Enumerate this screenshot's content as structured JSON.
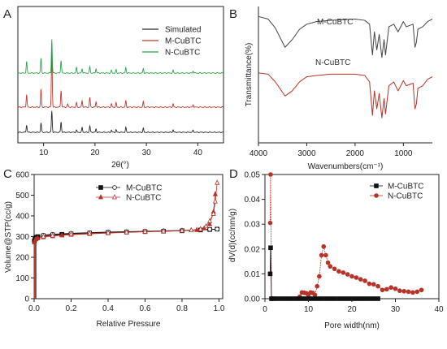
{
  "chart_data": [
    {
      "panel": "A",
      "type": "line",
      "xlabel": "2θ(°)",
      "ylabel": "",
      "xlim": [
        5,
        45
      ],
      "xticks": [
        10,
        20,
        30,
        40
      ],
      "legend_position": "top-right",
      "series": [
        {
          "name": "Simulated",
          "color": "#2b2b2b",
          "offset": 0,
          "peaks": [
            [
              6.7,
              0.35
            ],
            [
              9.5,
              0.45
            ],
            [
              11.6,
              1.0
            ],
            [
              13.4,
              0.5
            ],
            [
              16.4,
              0.1
            ],
            [
              17.5,
              0.22
            ],
            [
              19.0,
              0.3
            ],
            [
              20.2,
              0.15
            ],
            [
              23.2,
              0.1
            ],
            [
              24.1,
              0.12
            ],
            [
              26.0,
              0.22
            ],
            [
              29.4,
              0.18
            ],
            [
              35.2,
              0.12
            ],
            [
              39.1,
              0.1
            ]
          ]
        },
        {
          "name": "M-CuBTC",
          "color": "#c0392b",
          "offset": 1,
          "peaks": [
            [
              6.7,
              0.6
            ],
            [
              9.5,
              0.85
            ],
            [
              11.6,
              2.7
            ],
            [
              13.4,
              0.8
            ],
            [
              14.7,
              0.15
            ],
            [
              16.4,
              0.2
            ],
            [
              17.5,
              0.3
            ],
            [
              19.0,
              0.45
            ],
            [
              20.2,
              0.25
            ],
            [
              23.2,
              0.15
            ],
            [
              24.1,
              0.2
            ],
            [
              26.0,
              0.3
            ],
            [
              29.4,
              0.25
            ],
            [
              35.2,
              0.15
            ],
            [
              39.1,
              0.12
            ]
          ]
        },
        {
          "name": "N-CuBTC",
          "color": "#27a84a",
          "offset": 2,
          "peaks": [
            [
              6.7,
              0.55
            ],
            [
              9.5,
              0.7
            ],
            [
              11.6,
              1.6
            ],
            [
              13.4,
              0.6
            ],
            [
              16.4,
              0.25
            ],
            [
              17.5,
              0.2
            ],
            [
              19.0,
              0.3
            ],
            [
              20.2,
              0.2
            ],
            [
              23.2,
              0.12
            ],
            [
              24.1,
              0.15
            ],
            [
              26.0,
              0.25
            ],
            [
              29.4,
              0.2
            ],
            [
              35.2,
              0.12
            ],
            [
              39.1,
              0.1
            ]
          ]
        }
      ]
    },
    {
      "panel": "B",
      "type": "line",
      "xlabel": "Wavenumbers(cm⁻¹)",
      "ylabel": "Transmittance(%)",
      "xlim": [
        4000,
        400
      ],
      "xticks": [
        4000,
        3000,
        2000,
        1000
      ],
      "series": [
        {
          "name": "M-CuBTC",
          "color": "#444444",
          "points": [
            [
              4000,
              0.96
            ],
            [
              3800,
              0.94
            ],
            [
              3650,
              0.87
            ],
            [
              3450,
              0.72
            ],
            [
              3300,
              0.78
            ],
            [
              3150,
              0.86
            ],
            [
              3000,
              0.9
            ],
            [
              2800,
              0.92
            ],
            [
              2500,
              0.93
            ],
            [
              2000,
              0.94
            ],
            [
              1800,
              0.93
            ],
            [
              1700,
              0.9
            ],
            [
              1640,
              0.66
            ],
            [
              1600,
              0.84
            ],
            [
              1550,
              0.7
            ],
            [
              1500,
              0.82
            ],
            [
              1445,
              0.64
            ],
            [
              1400,
              0.78
            ],
            [
              1370,
              0.66
            ],
            [
              1300,
              0.88
            ],
            [
              1200,
              0.9
            ],
            [
              1110,
              0.84
            ],
            [
              1000,
              0.92
            ],
            [
              940,
              0.88
            ],
            [
              800,
              0.9
            ],
            [
              760,
              0.72
            ],
            [
              730,
              0.76
            ],
            [
              700,
              0.86
            ],
            [
              600,
              0.88
            ],
            [
              500,
              0.92
            ],
            [
              400,
              0.94
            ]
          ]
        },
        {
          "name": "N-CuBTC",
          "color": "#b83227",
          "points": [
            [
              4000,
              0.52
            ],
            [
              3800,
              0.51
            ],
            [
              3650,
              0.45
            ],
            [
              3450,
              0.34
            ],
            [
              3300,
              0.38
            ],
            [
              3150,
              0.45
            ],
            [
              3000,
              0.49
            ],
            [
              2800,
              0.5
            ],
            [
              2500,
              0.51
            ],
            [
              2000,
              0.51
            ],
            [
              1800,
              0.5
            ],
            [
              1700,
              0.45
            ],
            [
              1640,
              0.19
            ],
            [
              1600,
              0.38
            ],
            [
              1550,
              0.24
            ],
            [
              1500,
              0.36
            ],
            [
              1445,
              0.17
            ],
            [
              1400,
              0.32
            ],
            [
              1370,
              0.2
            ],
            [
              1300,
              0.42
            ],
            [
              1200,
              0.45
            ],
            [
              1110,
              0.38
            ],
            [
              1000,
              0.46
            ],
            [
              940,
              0.42
            ],
            [
              800,
              0.44
            ],
            [
              760,
              0.24
            ],
            [
              730,
              0.28
            ],
            [
              700,
              0.4
            ],
            [
              600,
              0.42
            ],
            [
              500,
              0.47
            ],
            [
              400,
              0.49
            ]
          ]
        }
      ]
    },
    {
      "panel": "C",
      "type": "scatter",
      "xlabel": "Relative Pressure",
      "ylabel": "Volume@STP(cc/g)",
      "xlim": [
        0,
        1.02
      ],
      "ylim": [
        0,
        600
      ],
      "xticks": [
        "0.0",
        "0.2",
        "0.4",
        "0.6",
        "0.8",
        "1.0"
      ],
      "yticks": [
        "0",
        "100",
        "200",
        "300",
        "400",
        "500",
        "600"
      ],
      "legend_position": "top-left",
      "series": [
        {
          "name": "M-CuBTC",
          "color": "#111111",
          "branch": "adsorption",
          "marker": "square-filled",
          "points": [
            [
              0.001,
              280
            ],
            [
              0.005,
              292
            ],
            [
              0.01,
              297
            ],
            [
              0.02,
              300
            ],
            [
              0.05,
              304
            ],
            [
              0.1,
              308
            ],
            [
              0.15,
              311
            ],
            [
              0.2,
              313
            ],
            [
              0.3,
              317
            ],
            [
              0.4,
              320
            ],
            [
              0.5,
              322
            ],
            [
              0.6,
              324
            ],
            [
              0.7,
              326
            ],
            [
              0.8,
              328
            ],
            [
              0.9,
              332
            ],
            [
              0.95,
              334
            ],
            [
              0.99,
              336
            ]
          ]
        },
        {
          "name": "M-CuBTC",
          "color": "#111111",
          "branch": "desorption",
          "marker": "circle-open",
          "points": [
            [
              0.99,
              336
            ],
            [
              0.95,
              335
            ],
            [
              0.9,
              333
            ],
            [
              0.8,
              330
            ],
            [
              0.7,
              328
            ],
            [
              0.6,
              326
            ],
            [
              0.5,
              324
            ],
            [
              0.4,
              322
            ],
            [
              0.3,
              319
            ],
            [
              0.2,
              316
            ],
            [
              0.1,
              311
            ],
            [
              0.05,
              307
            ]
          ]
        },
        {
          "name": "N-CuBTC",
          "color": "#b83227",
          "branch": "adsorption",
          "marker": "triangle-filled",
          "points": [
            [
              0.001,
              272
            ],
            [
              0.005,
              283
            ],
            [
              0.01,
              288
            ],
            [
              0.02,
              292
            ],
            [
              0.05,
              297
            ],
            [
              0.1,
              302
            ],
            [
              0.15,
              306
            ],
            [
              0.2,
              309
            ],
            [
              0.3,
              313
            ],
            [
              0.4,
              317
            ],
            [
              0.5,
              320
            ],
            [
              0.6,
              323
            ],
            [
              0.7,
              325
            ],
            [
              0.8,
              328
            ],
            [
              0.88,
              332
            ],
            [
              0.92,
              340
            ],
            [
              0.95,
              360
            ],
            [
              0.97,
              420
            ],
            [
              0.98,
              505
            ]
          ]
        },
        {
          "name": "N-CuBTC",
          "color": "#b83227",
          "branch": "desorption",
          "marker": "triangle-open",
          "points": [
            [
              0.99,
              560
            ],
            [
              0.98,
              470
            ],
            [
              0.97,
              410
            ],
            [
              0.95,
              375
            ],
            [
              0.93,
              350
            ],
            [
              0.9,
              336
            ],
            [
              0.85,
              331
            ],
            [
              0.8,
              329
            ],
            [
              0.7,
              326
            ],
            [
              0.6,
              324
            ],
            [
              0.5,
              321
            ],
            [
              0.4,
              318
            ],
            [
              0.3,
              315
            ],
            [
              0.2,
              311
            ],
            [
              0.1,
              305
            ],
            [
              0.05,
              300
            ]
          ]
        }
      ]
    },
    {
      "panel": "D",
      "type": "scatter",
      "xlabel": "Pore width(nm)",
      "ylabel": "dV(d)(cc/nm/g)",
      "xlim": [
        0,
        40
      ],
      "ylim": [
        0,
        0.05
      ],
      "xticks": [
        "0",
        "10",
        "20",
        "30",
        "40"
      ],
      "yticks": [
        "0.00",
        "0.01",
        "0.02",
        "0.03",
        "0.04",
        "0.05"
      ],
      "legend_position": "top-right",
      "series": [
        {
          "name": "M-CuBTC",
          "color": "#111111",
          "marker": "square-filled",
          "points": [
            [
              1.2,
              0.01
            ],
            [
              1.3,
              0.0205
            ],
            [
              1.5,
              0.0
            ],
            [
              2,
              0
            ],
            [
              3,
              0
            ],
            [
              4,
              0
            ],
            [
              5,
              0
            ],
            [
              6,
              0
            ],
            [
              7,
              0
            ],
            [
              8,
              0
            ],
            [
              9,
              0
            ],
            [
              10,
              0
            ],
            [
              11,
              0
            ],
            [
              12,
              0
            ],
            [
              13,
              0
            ],
            [
              14,
              0
            ],
            [
              15,
              0
            ],
            [
              16,
              0
            ],
            [
              17,
              0
            ],
            [
              18,
              0
            ],
            [
              19,
              0
            ],
            [
              20,
              0
            ],
            [
              21,
              0
            ],
            [
              22,
              0
            ],
            [
              23,
              0
            ],
            [
              24,
              0
            ],
            [
              25,
              0
            ],
            [
              26,
              0
            ]
          ]
        },
        {
          "name": "N-CuBTC",
          "color": "#b83227",
          "marker": "circle-filled",
          "points": [
            [
              1.2,
              0.0305
            ],
            [
              1.3,
              0.05
            ],
            [
              1.5,
              0.0
            ],
            [
              8.0,
              0.0008
            ],
            [
              8.5,
              0.0025
            ],
            [
              9.0,
              0.0024
            ],
            [
              9.5,
              0.0022
            ],
            [
              10.0,
              0.0015
            ],
            [
              10.5,
              0.0025
            ],
            [
              11.0,
              0.0023
            ],
            [
              11.5,
              0.0015
            ],
            [
              12.0,
              0.005
            ],
            [
              12.5,
              0.009
            ],
            [
              13.0,
              0.0175
            ],
            [
              13.5,
              0.021
            ],
            [
              14.0,
              0.0175
            ],
            [
              14.5,
              0.0145
            ],
            [
              15.0,
              0.013
            ],
            [
              16.0,
              0.012
            ],
            [
              17.0,
              0.011
            ],
            [
              18.0,
              0.0105
            ],
            [
              19.0,
              0.0098
            ],
            [
              20.0,
              0.009
            ],
            [
              21.0,
              0.0085
            ],
            [
              22.0,
              0.0078
            ],
            [
              23.0,
              0.0072
            ],
            [
              24.0,
              0.006
            ],
            [
              25.0,
              0.0058
            ],
            [
              26.0,
              0.005
            ],
            [
              27.0,
              0.0035
            ],
            [
              28.0,
              0.0038
            ],
            [
              29.0,
              0.0045
            ],
            [
              30.0,
              0.004
            ],
            [
              31.0,
              0.0032
            ],
            [
              32.0,
              0.003
            ],
            [
              33.0,
              0.0028
            ],
            [
              34.0,
              0.0025
            ],
            [
              35.0,
              0.0028
            ],
            [
              36.0,
              0.0035
            ]
          ]
        }
      ]
    }
  ],
  "panel_labels": [
    "A",
    "B",
    "C",
    "D"
  ],
  "panel_b_series_labels": [
    "M-CuBTC",
    "N-CuBTC"
  ]
}
